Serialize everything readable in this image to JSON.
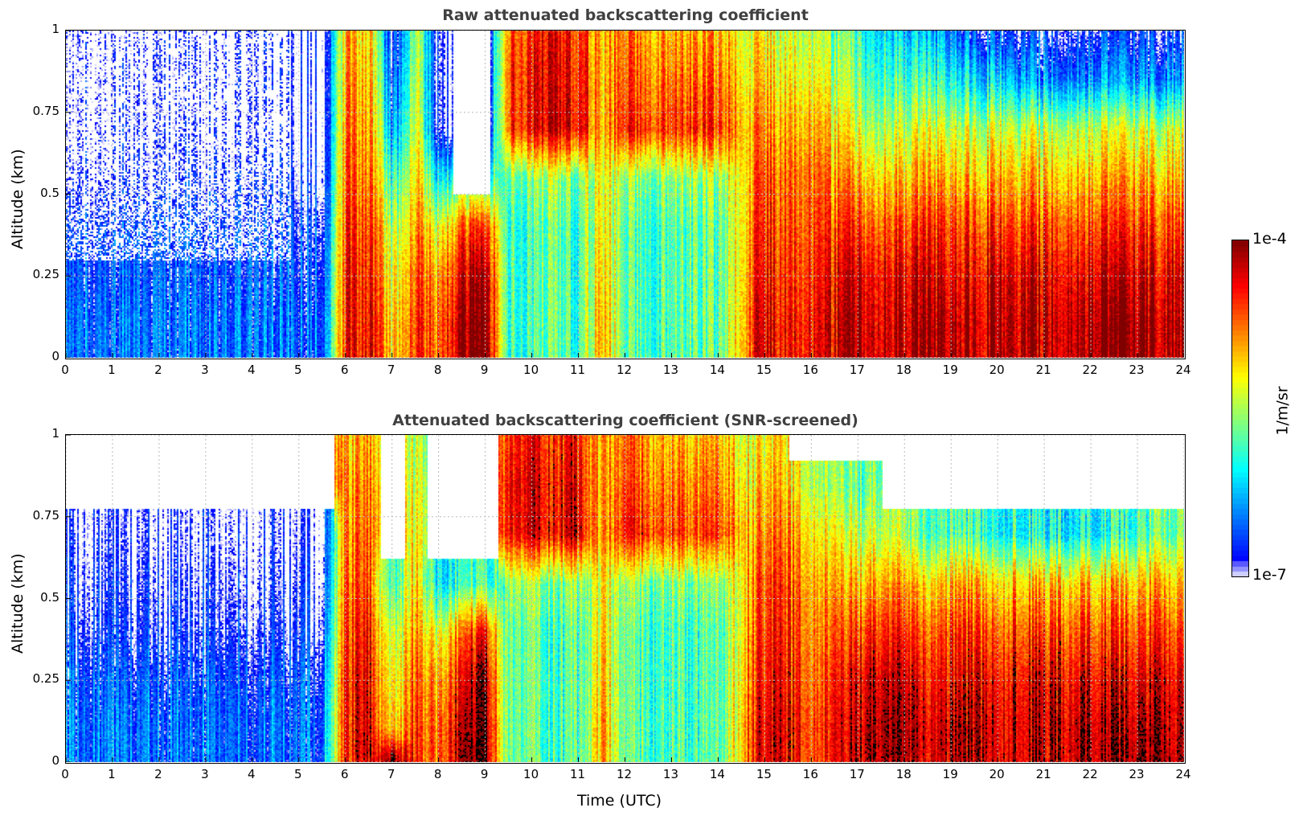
{
  "chart_data": [
    {
      "type": "heatmap",
      "title": "Raw attenuated backscattering coefficient",
      "xlabel": "",
      "ylabel": "Altitude (km)",
      "xlim": [
        0,
        24
      ],
      "ylim": [
        0,
        1
      ],
      "xticks": [
        "0",
        "1",
        "2",
        "3",
        "4",
        "5",
        "6",
        "7",
        "8",
        "9",
        "10",
        "11",
        "12",
        "13",
        "14",
        "15",
        "16",
        "17",
        "18",
        "19",
        "20",
        "21",
        "22",
        "23",
        "24"
      ],
      "yticks": [
        "0",
        "0.25",
        "0.5",
        "0.75",
        "1"
      ],
      "grid": true,
      "value_units": "log10(1/m/sr)",
      "time_hours": [
        0,
        1,
        2,
        3,
        4,
        4.8,
        5,
        5.5,
        6,
        6.5,
        7,
        7.5,
        8,
        8.5,
        9,
        9.5,
        10,
        11,
        11.5,
        12,
        13,
        14,
        14.7,
        15,
        16,
        17,
        18,
        19,
        20,
        21,
        22,
        23,
        24
      ],
      "altitude_km": [
        0,
        0.1,
        0.25,
        0.4,
        0.55,
        0.7,
        0.85,
        1.0
      ],
      "values": [
        [
          -6.5,
          -6.5,
          -6.5,
          -6.5,
          -6.5,
          -6.5,
          -6.5,
          -6.5,
          -4.5,
          -4.3,
          -5.2,
          -4.5,
          -4.8,
          -4.1,
          -4.0,
          -5.8,
          -5.8,
          -5.8,
          -4.9,
          -5.8,
          -5.8,
          -5.8,
          -4.6,
          -4.3,
          -4.5,
          -4.2,
          -4.2,
          -4.2,
          -4.2,
          -4.2,
          -4.1,
          -4.1,
          -4.2
        ],
        [
          -6.5,
          -6.5,
          -6.5,
          -6.5,
          -6.5,
          -6.5,
          -6.5,
          -6.5,
          -4.5,
          -4.3,
          -5.2,
          -4.5,
          -4.8,
          -4.1,
          -4.0,
          -5.8,
          -5.8,
          -5.8,
          -4.9,
          -5.8,
          -5.8,
          -5.8,
          -4.6,
          -4.3,
          -4.5,
          -4.2,
          -4.2,
          -4.2,
          -4.2,
          -4.2,
          -4.1,
          -4.1,
          -4.2
        ],
        [
          -6.6,
          -6.6,
          -6.6,
          -6.6,
          -6.6,
          -6.6,
          -6.6,
          -6.6,
          -4.5,
          -4.4,
          -5.4,
          -4.6,
          -5.0,
          -4.3,
          -4.1,
          -5.8,
          -5.8,
          -5.8,
          -5.0,
          -5.8,
          -5.8,
          -5.8,
          -4.7,
          -4.4,
          -4.6,
          -4.3,
          -4.3,
          -4.4,
          -4.3,
          -4.3,
          -4.3,
          -4.3,
          -4.3
        ],
        [
          -6.7,
          -6.7,
          -6.7,
          -6.7,
          -6.7,
          -6.7,
          -6.7,
          -6.7,
          -4.6,
          -4.5,
          -5.6,
          -4.8,
          -5.4,
          -4.7,
          -4.5,
          -5.8,
          -5.8,
          -5.8,
          -5.1,
          -5.8,
          -5.8,
          -5.8,
          -4.8,
          -4.5,
          -4.7,
          -4.6,
          -4.6,
          -4.6,
          -4.6,
          -4.6,
          -4.6,
          -4.6,
          -4.6
        ],
        [
          -6.9,
          -6.9,
          -6.9,
          -6.9,
          -6.9,
          -6.9,
          -6.9,
          -6.9,
          -4.7,
          -4.7,
          -6.0,
          -5.0,
          -6.2,
          -5.8,
          -5.9,
          -5.6,
          -5.6,
          -5.6,
          -5.2,
          -5.6,
          -5.6,
          -5.6,
          -4.9,
          -4.6,
          -4.8,
          -5.0,
          -5.0,
          -5.0,
          -5.0,
          -5.0,
          -5.0,
          -5.0,
          -5.0
        ],
        [
          -7.0,
          -7.0,
          -7.0,
          -7.0,
          -7.0,
          -7.0,
          -7.0,
          -7.0,
          -4.8,
          -4.8,
          -6.5,
          -5.2,
          -7.0,
          -7.0,
          -7.0,
          -4.5,
          -4.4,
          -4.3,
          -5.0,
          -4.5,
          -4.6,
          -4.6,
          -5.0,
          -4.8,
          -5.0,
          -5.4,
          -5.4,
          -5.4,
          -5.4,
          -5.4,
          -5.4,
          -5.4,
          -5.4
        ],
        [
          -7.0,
          -7.0,
          -7.0,
          -7.0,
          -7.0,
          -7.0,
          -7.0,
          -7.0,
          -4.9,
          -4.9,
          -6.8,
          -5.3,
          -7.0,
          -7.0,
          -7.0,
          -4.5,
          -4.4,
          -4.4,
          -5.0,
          -4.7,
          -4.8,
          -4.8,
          -5.2,
          -5.0,
          -5.3,
          -5.7,
          -5.8,
          -6.0,
          -6.2,
          -6.4,
          -6.4,
          -6.4,
          -6.4
        ],
        [
          -7.0,
          -7.0,
          -7.0,
          -7.0,
          -7.0,
          -7.0,
          -7.0,
          -7.0,
          -5.0,
          -5.0,
          -7.0,
          -5.4,
          -7.0,
          -7.0,
          -7.0,
          -4.6,
          -4.5,
          -4.5,
          -5.0,
          -4.8,
          -5.0,
          -5.0,
          -5.3,
          -5.2,
          -5.5,
          -5.9,
          -6.2,
          -6.5,
          -6.8,
          -6.8,
          -6.8,
          -6.8,
          -6.8
        ]
      ]
    },
    {
      "type": "heatmap",
      "title": "Attenuated backscattering coefficient (SNR-screened)",
      "xlabel": "Time (UTC)",
      "ylabel": "Altitude (km)",
      "xlim": [
        0,
        24
      ],
      "ylim": [
        0,
        1
      ],
      "xticks": [
        "0",
        "1",
        "2",
        "3",
        "4",
        "5",
        "6",
        "7",
        "8",
        "9",
        "10",
        "11",
        "12",
        "13",
        "14",
        "15",
        "16",
        "17",
        "18",
        "19",
        "20",
        "21",
        "22",
        "23",
        "24"
      ],
      "yticks": [
        "0",
        "0.25",
        "0.5",
        "0.75",
        "1"
      ],
      "grid": true,
      "value_units": "log10(1/m/sr)",
      "time_hours": [
        0,
        1,
        2,
        3,
        4,
        4.8,
        5,
        5.5,
        6,
        6.5,
        7,
        7.5,
        8,
        8.5,
        9,
        9.5,
        10,
        11,
        11.5,
        12,
        13,
        14,
        14.7,
        15,
        16,
        17,
        18,
        19,
        20,
        21,
        22,
        23,
        24
      ],
      "altitude_km": [
        0,
        0.1,
        0.25,
        0.4,
        0.55,
        0.7,
        0.85,
        1.0
      ],
      "values": [
        [
          -6.5,
          -6.5,
          -6.5,
          -6.5,
          -6.5,
          -6.5,
          -6.5,
          -6.5,
          -4.5,
          -4.3,
          -4.0,
          -4.5,
          -4.8,
          -4.0,
          -4.0,
          -5.8,
          -5.8,
          -5.8,
          -4.9,
          -5.8,
          -5.8,
          -5.8,
          -4.6,
          -4.3,
          -4.5,
          -4.2,
          -4.2,
          -4.2,
          -4.2,
          -4.2,
          -4.1,
          -4.0,
          -4.2
        ],
        [
          -6.5,
          -6.5,
          -6.5,
          -6.5,
          -6.5,
          -6.5,
          -6.5,
          -6.5,
          -4.5,
          -4.3,
          -5.2,
          -4.5,
          -4.8,
          -4.1,
          -4.0,
          -5.8,
          -5.8,
          -5.8,
          -4.9,
          -5.8,
          -5.8,
          -5.8,
          -4.6,
          -4.3,
          -4.5,
          -4.2,
          -4.2,
          -4.2,
          -4.2,
          -4.2,
          -4.1,
          -4.1,
          -4.2
        ],
        [
          -6.6,
          -6.6,
          -6.6,
          -6.6,
          -6.6,
          -6.6,
          -6.6,
          -6.6,
          -4.5,
          -4.4,
          -5.4,
          -4.6,
          -5.0,
          -4.3,
          -4.1,
          -5.8,
          -5.8,
          -5.8,
          -5.0,
          -5.8,
          -5.8,
          -5.8,
          -4.7,
          -4.4,
          -4.6,
          -4.3,
          -4.3,
          -4.4,
          -4.3,
          -4.3,
          -4.3,
          -4.3,
          -4.3
        ],
        [
          -6.8,
          -6.8,
          -6.8,
          -6.8,
          -6.8,
          -6.8,
          -6.8,
          -6.8,
          -4.6,
          -4.5,
          -5.6,
          -4.8,
          -5.4,
          -4.7,
          -4.5,
          -5.8,
          -5.8,
          -5.8,
          -5.1,
          -5.8,
          -5.8,
          -5.8,
          -4.8,
          -4.5,
          -4.7,
          -4.6,
          -4.6,
          -4.6,
          -4.6,
          -4.6,
          -4.6,
          -4.6,
          -4.6
        ],
        [
          -6.9,
          -6.9,
          -6.9,
          -6.9,
          -6.9,
          -6.9,
          -6.9,
          -6.9,
          -4.7,
          -4.7,
          -6.0,
          -5.0,
          -6.2,
          -5.8,
          -5.9,
          -5.6,
          -5.6,
          -5.6,
          -5.2,
          -5.6,
          -5.6,
          -5.6,
          -4.9,
          -4.6,
          -4.8,
          -5.0,
          -5.0,
          -5.0,
          -5.0,
          -5.0,
          -5.0,
          -5.0,
          -5.0
        ],
        [
          -7.0,
          -7.0,
          -7.0,
          -7.0,
          -7.0,
          -7.0,
          -7.0,
          -7.0,
          -4.8,
          -4.8,
          null,
          -5.2,
          null,
          null,
          null,
          -4.5,
          -4.4,
          -4.3,
          -5.0,
          -4.5,
          -4.6,
          -4.6,
          -5.0,
          -4.8,
          -5.0,
          -5.4,
          -5.6,
          -5.8,
          -5.9,
          -6.0,
          -6.0,
          -5.8,
          -5.6
        ],
        [
          null,
          null,
          null,
          null,
          null,
          null,
          null,
          null,
          -4.9,
          -4.9,
          null,
          -5.3,
          null,
          null,
          null,
          -4.5,
          -4.4,
          -4.4,
          -5.0,
          -4.7,
          -4.8,
          -4.8,
          -5.2,
          -5.0,
          -5.3,
          -5.7,
          null,
          null,
          null,
          null,
          null,
          null,
          null
        ],
        [
          null,
          null,
          null,
          null,
          null,
          null,
          null,
          null,
          -5.0,
          -5.0,
          null,
          -5.4,
          null,
          null,
          null,
          -4.6,
          -4.5,
          -4.5,
          -5.0,
          -4.8,
          -5.0,
          -5.0,
          -5.3,
          -5.2,
          null,
          null,
          null,
          null,
          null,
          null,
          null,
          null,
          null
        ]
      ]
    }
  ],
  "colorbar": {
    "min_label": "1e-7",
    "max_label": "1e-4",
    "min_log": -7,
    "max_log": -4,
    "unit": "1/m/sr",
    "colormap": "jet"
  }
}
